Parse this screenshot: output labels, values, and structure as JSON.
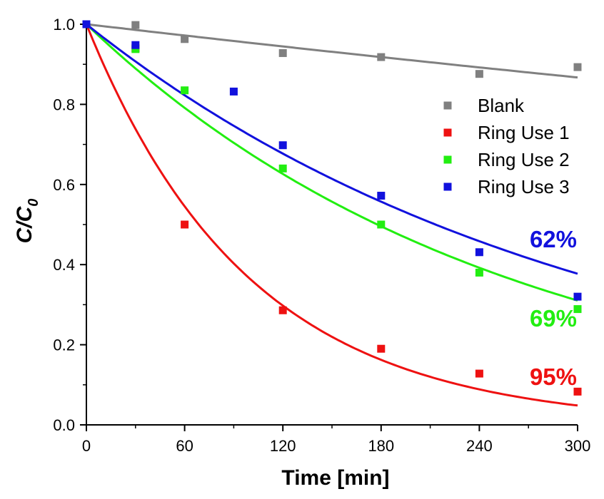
{
  "chart_data": {
    "type": "scatter",
    "xlabel": "Time [min]",
    "ylabel": {
      "main": "C/C",
      "subscript": "0"
    },
    "xlim": [
      0,
      300
    ],
    "ylim": [
      0,
      1.0
    ],
    "xticks": [
      0,
      60,
      120,
      180,
      240,
      300
    ],
    "xtick_labels": [
      "0",
      "60",
      "120",
      "180",
      "240",
      "300"
    ],
    "yticks": [
      0.0,
      0.2,
      0.4,
      0.6,
      0.8,
      1.0
    ],
    "ytick_labels": [
      "0.0",
      "0.2",
      "0.4",
      "0.6",
      "0.8",
      "1.0"
    ],
    "grid": false,
    "legend_position": "top-right",
    "series": [
      {
        "name": "Blank",
        "color": "#808080",
        "x": [
          0,
          30,
          60,
          120,
          180,
          240,
          300
        ],
        "y": [
          1.0,
          0.998,
          0.963,
          0.928,
          0.918,
          0.876,
          0.893
        ],
        "fit": {
          "model": "exponential",
          "k": 0.000475
        }
      },
      {
        "name": "Ring Use 1",
        "color": "#ee1111",
        "x": [
          0,
          30,
          60,
          120,
          180,
          240,
          300
        ],
        "y": [
          1.0,
          0.94,
          0.5,
          0.286,
          0.19,
          0.128,
          0.083
        ],
        "fit": {
          "model": "exponential",
          "k": 0.0101
        }
      },
      {
        "name": "Ring Use 2",
        "color": "#22ee11",
        "x": [
          0,
          30,
          60,
          120,
          180,
          240,
          300
        ],
        "y": [
          1.0,
          0.938,
          0.835,
          0.64,
          0.5,
          0.38,
          0.289
        ],
        "fit": {
          "model": "exponential",
          "k": 0.0039
        }
      },
      {
        "name": "Ring Use 3",
        "color": "#1111dd",
        "x": [
          0,
          30,
          90,
          120,
          180,
          240,
          300
        ],
        "y": [
          1.0,
          0.948,
          0.832,
          0.698,
          0.572,
          0.431,
          0.32
        ],
        "fit": {
          "model": "exponential",
          "k": 0.00325
        }
      }
    ],
    "annotations": [
      {
        "text": "62%",
        "color": "#1111dd"
      },
      {
        "text": "69%",
        "color": "#22ee11"
      },
      {
        "text": "95%",
        "color": "#ee1111"
      }
    ]
  }
}
